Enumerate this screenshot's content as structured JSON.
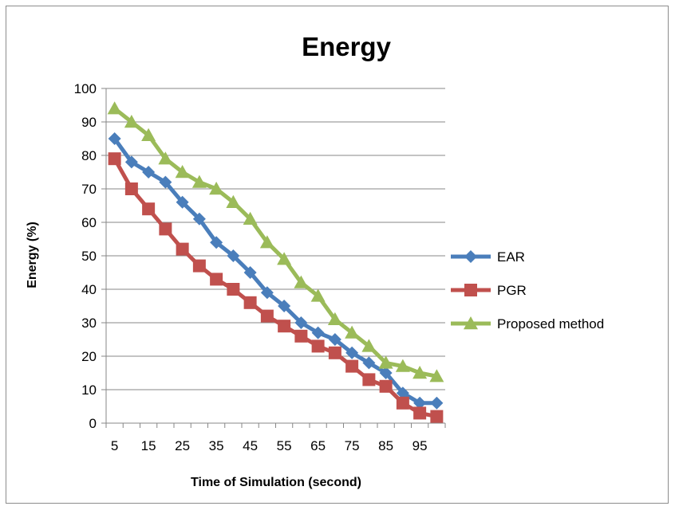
{
  "chart_data": {
    "type": "line",
    "title": "Energy",
    "xlabel": "Time of Simulation (second)",
    "ylabel": "Energy (%)",
    "ylim": [
      0,
      100
    ],
    "yticks": [
      "0",
      "10",
      "20",
      "30",
      "40",
      "50",
      "60",
      "70",
      "80",
      "90",
      "100"
    ],
    "x": [
      5,
      10,
      15,
      20,
      25,
      30,
      35,
      40,
      45,
      50,
      55,
      60,
      65,
      70,
      75,
      80,
      85,
      90,
      95,
      100
    ],
    "xtick_labels": [
      "5",
      "15",
      "25",
      "35",
      "45",
      "55",
      "65",
      "75",
      "85",
      "95"
    ],
    "grid": "horizontal",
    "legend_position": "right",
    "series": [
      {
        "name": "EAR",
        "color": "#4a7ebb",
        "marker": "diamond",
        "values": [
          85,
          78,
          75,
          72,
          66,
          61,
          54,
          50,
          45,
          39,
          35,
          30,
          27,
          25,
          21,
          18,
          15,
          9,
          6,
          6
        ]
      },
      {
        "name": "PGR",
        "color": "#c0504d",
        "marker": "square",
        "values": [
          79,
          70,
          64,
          58,
          52,
          47,
          43,
          40,
          36,
          32,
          29,
          26,
          23,
          21,
          17,
          13,
          11,
          6,
          3,
          2
        ]
      },
      {
        "name": "Proposed method",
        "color": "#9bbb59",
        "marker": "triangle",
        "values": [
          94,
          90,
          86,
          79,
          75,
          72,
          70,
          66,
          61,
          54,
          49,
          42,
          38,
          31,
          27,
          23,
          18,
          17,
          15,
          14
        ]
      }
    ]
  }
}
